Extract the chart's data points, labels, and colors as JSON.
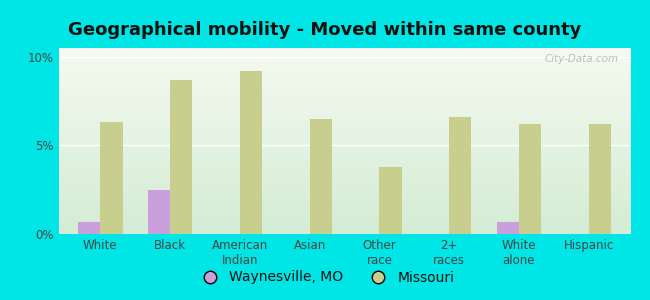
{
  "title": "Geographical mobility - Moved within same county",
  "categories": [
    "White",
    "Black",
    "American\nIndian",
    "Asian",
    "Other\nrace",
    "2+\nraces",
    "White\nalone",
    "Hispanic"
  ],
  "waynesville": [
    0.7,
    2.5,
    0.0,
    0.0,
    0.0,
    0.0,
    0.7,
    0.0
  ],
  "missouri": [
    6.3,
    8.7,
    9.2,
    6.5,
    3.8,
    6.6,
    6.2,
    6.2
  ],
  "waynesville_color": "#c9a0dc",
  "missouri_color": "#c8cf8e",
  "background_outer": "#00e5e5",
  "background_inner_bottom": "#d4ecd4",
  "background_inner_top": "#f5faf0",
  "yticks": [
    0,
    5,
    10
  ],
  "ylim": [
    0,
    10.5
  ],
  "bar_width": 0.32,
  "title_fontsize": 13,
  "legend_fontsize": 10,
  "tick_fontsize": 8.5,
  "watermark": "City-Data.com"
}
